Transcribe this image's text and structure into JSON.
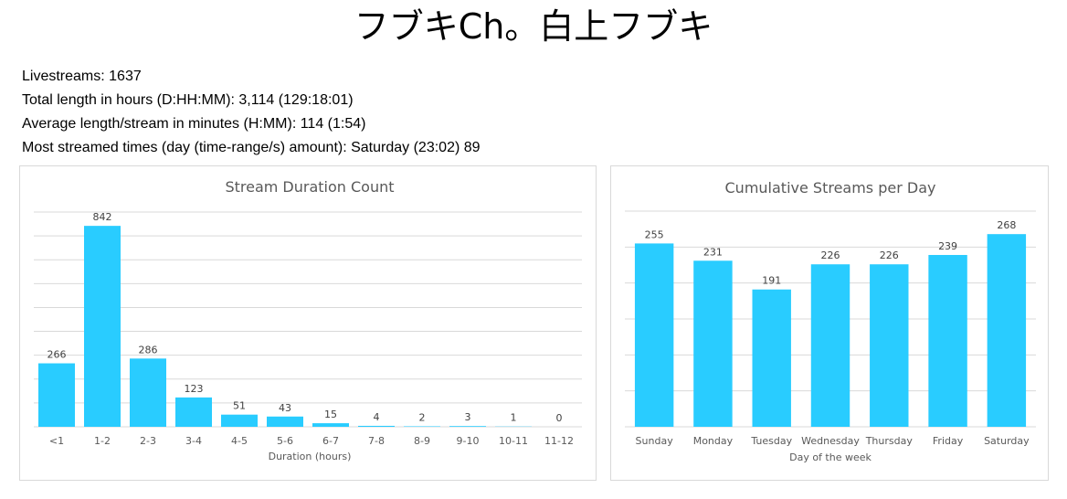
{
  "page": {
    "title": "フブキCh。白上フブキ"
  },
  "stats": [
    "Livestreams: 1637",
    "Total length in hours (D:HH:MM): 3,114 (129:18:01)",
    "Average length/stream in minutes (H:MM): 114 (1:54)",
    "Most streamed times (day (time-range/s) amount): Saturday (23:02) 89"
  ],
  "colors": {
    "bar": "#29CCFF",
    "grid": "#D9D9D9",
    "label": "#595959"
  },
  "chart_data": [
    {
      "type": "bar",
      "title": "Stream Duration Count",
      "xlabel": "Duration (hours)",
      "ylabel": "",
      "categories": [
        "<1",
        "1-2",
        "2-3",
        "3-4",
        "4-5",
        "5-6",
        "6-7",
        "7-8",
        "8-9",
        "9-10",
        "10-11",
        "11-12"
      ],
      "values": [
        266,
        842,
        286,
        123,
        51,
        43,
        15,
        4,
        2,
        3,
        1,
        0
      ],
      "ylim": [
        0,
        900
      ],
      "grid": true,
      "data_labels": true
    },
    {
      "type": "bar",
      "title": "Cumulative Streams per Day",
      "xlabel": "Day of the week",
      "ylabel": "",
      "categories": [
        "Sunday",
        "Monday",
        "Tuesday",
        "Wednesday",
        "Thursday",
        "Friday",
        "Saturday"
      ],
      "values": [
        255,
        231,
        191,
        226,
        226,
        239,
        268
      ],
      "ylim": [
        0,
        300
      ],
      "grid": true,
      "data_labels": true
    }
  ]
}
